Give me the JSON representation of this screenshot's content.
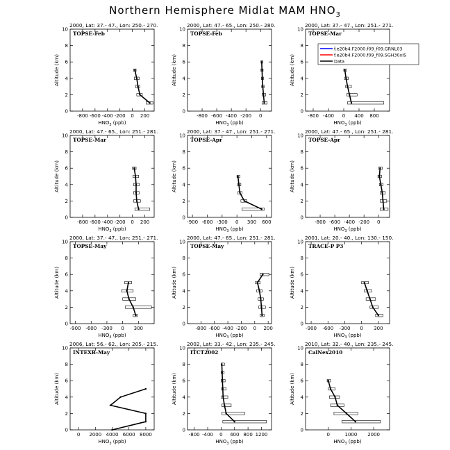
{
  "title_main": "Northern Hemisphere Midlat MAM HNO",
  "title_sub": "3",
  "legend": {
    "entries": [
      {
        "label": "f.e20b4.F2000.f09_f09.GRNL03",
        "color": "#0000ff"
      },
      {
        "label": "f.e20b4.F2000.f09_f09.SGH30xIS",
        "color": "#ff0000"
      },
      {
        "label": "Data",
        "color": "#000000"
      }
    ]
  },
  "chart_data": [
    {
      "type": "line",
      "header": "2000, Lat: 37.- 47., Lon: 250.- 270.",
      "campaign": "TOPSE-Feb",
      "xlabel": "HNO3 (ppb)",
      "ylabel": "Altitude (km)",
      "xlim": [
        -1000,
        350
      ],
      "ylim": [
        0,
        10
      ],
      "xticks": [
        -800,
        -600,
        -400,
        -200,
        0,
        200
      ],
      "yticks": [
        0,
        2,
        4,
        6,
        8,
        10
      ],
      "altitude": [
        1,
        2,
        3,
        4,
        5
      ],
      "mean": [
        280,
        120,
        90,
        70,
        40
      ],
      "box_lo": [
        220,
        70,
        50,
        30,
        20
      ],
      "box_hi": [
        330,
        160,
        120,
        110,
        60
      ]
    },
    {
      "type": "line",
      "header": "2000, Lat: 47.- 65., Lon: 250.- 280.",
      "campaign": "TOPSE-Feb",
      "xlabel": "HNO3 (ppb)",
      "ylabel": "Altitude (km)",
      "xlim": [
        -1000,
        150
      ],
      "ylim": [
        0,
        10
      ],
      "xticks": [
        -800,
        -600,
        -400,
        -200,
        0
      ],
      "yticks": [
        0,
        2,
        4,
        6,
        8,
        10
      ],
      "altitude": [
        1,
        2,
        3,
        4,
        5,
        6
      ],
      "mean": [
        50,
        40,
        30,
        25,
        20,
        15
      ],
      "box_lo": [
        20,
        20,
        15,
        10,
        5,
        5
      ],
      "box_hi": [
        90,
        70,
        50,
        40,
        35,
        30
      ]
    },
    {
      "type": "line",
      "header": "2000, Lat: 37.- 47., Lon: 251.- 271.",
      "campaign": "TOPSE-Mar",
      "xlabel": "HNO3 (ppb)",
      "ylabel": "Altitude (km)",
      "xlim": [
        -1000,
        1200
      ],
      "ylim": [
        0,
        10
      ],
      "xticks": [
        -800,
        -400,
        0,
        400,
        800
      ],
      "yticks": [
        0,
        2,
        4,
        6,
        8,
        10
      ],
      "altitude": [
        1,
        2,
        3,
        4,
        5
      ],
      "mean": [
        200,
        150,
        100,
        60,
        30
      ],
      "box_lo": [
        100,
        80,
        50,
        20,
        0
      ],
      "box_hi": [
        1050,
        350,
        200,
        120,
        70
      ]
    },
    {
      "type": "line",
      "header": "2000, Lat: 47.- 65., Lon: 251.- 281.",
      "campaign": "TOPSE-Mar",
      "xlabel": "HNO3 (ppb)",
      "ylabel": "Altitude (km)",
      "xlim": [
        -1000,
        350
      ],
      "ylim": [
        0,
        10
      ],
      "xticks": [
        -800,
        -600,
        -400,
        -200,
        0,
        200
      ],
      "yticks": [
        0,
        2,
        4,
        6,
        8,
        10
      ],
      "altitude": [
        1,
        2,
        3,
        4,
        5,
        6
      ],
      "mean": [
        100,
        70,
        60,
        60,
        50,
        30
      ],
      "box_lo": [
        40,
        20,
        20,
        20,
        10,
        0
      ],
      "box_hi": [
        280,
        130,
        110,
        110,
        100,
        60
      ]
    },
    {
      "type": "line",
      "header": "2000, Lat: 37.- 47., Lon: 251.- 271.",
      "campaign": "TOPSE-Apr",
      "xlabel": "HNO3 (ppb)",
      "ylabel": "Altitude (km)",
      "xlim": [
        -1000,
        700
      ],
      "ylim": [
        0,
        10
      ],
      "xticks": [
        -900,
        -600,
        -300,
        0,
        300,
        600
      ],
      "yticks": [
        0,
        2,
        4,
        6,
        8,
        10
      ],
      "altitude": [
        1,
        2,
        3,
        4,
        5
      ],
      "mean": [
        500,
        150,
        60,
        40,
        20
      ],
      "box_lo": [
        100,
        80,
        20,
        10,
        0
      ],
      "box_hi": [
        550,
        200,
        100,
        80,
        60
      ]
    },
    {
      "type": "line",
      "header": "2000, Lat: 47.- 65., Lon: 251.- 281.",
      "campaign": "TOPSE-Apr",
      "xlabel": "HNO3 (ppb)",
      "ylabel": "Altitude (km)",
      "xlim": [
        -1000,
        150
      ],
      "ylim": [
        0,
        10
      ],
      "xticks": [
        -800,
        -600,
        -400,
        -200,
        0
      ],
      "yticks": [
        0,
        2,
        4,
        6,
        8,
        10
      ],
      "altitude": [
        1,
        2,
        3,
        4,
        5,
        6
      ],
      "mean": [
        70,
        60,
        50,
        30,
        10,
        20
      ],
      "box_lo": [
        20,
        20,
        20,
        10,
        -10,
        0
      ],
      "box_hi": [
        130,
        110,
        90,
        60,
        40,
        50
      ]
    },
    {
      "type": "line",
      "header": "2000, Lat: 37.- 47., Lon: 251.- 271.",
      "campaign": "TOPSE-May",
      "xlabel": "HNO3 (ppb)",
      "ylabel": "Altitude (km)",
      "xlim": [
        -1000,
        600
      ],
      "ylim": [
        0,
        10
      ],
      "xticks": [
        -900,
        -600,
        -300,
        0,
        300
      ],
      "yticks": [
        0,
        2,
        4,
        6,
        8,
        10
      ],
      "altitude": [
        1,
        2,
        3,
        4,
        5
      ],
      "mean": [
        250,
        200,
        120,
        80,
        110
      ],
      "box_lo": [
        200,
        50,
        0,
        -20,
        40
      ],
      "box_hi": [
        280,
        550,
        250,
        200,
        170
      ]
    },
    {
      "type": "line",
      "header": "2000, Lat: 47.- 65., Lon: 251.- 281.",
      "campaign": "TOPSE-May",
      "xlabel": "HNO3 (ppb)",
      "ylabel": "Altitude (km)",
      "xlim": [
        -1000,
        250
      ],
      "ylim": [
        0,
        10
      ],
      "xticks": [
        -800,
        -600,
        -400,
        -200,
        0,
        200
      ],
      "yticks": [
        0,
        2,
        4,
        6,
        8,
        10
      ],
      "altitude": [
        1,
        2,
        3,
        4,
        5,
        6
      ],
      "mean": [
        110,
        100,
        90,
        70,
        40,
        120
      ],
      "box_lo": [
        80,
        60,
        50,
        30,
        10,
        80
      ],
      "box_hi": [
        140,
        160,
        130,
        110,
        80,
        210
      ]
    },
    {
      "type": "line",
      "header": "2001, Lat: 20.- 40., Lon: 130.- 150.",
      "campaign": "TRACE-P P3",
      "xlabel": "HNO3 (ppb)",
      "ylabel": "Altitude (km)",
      "xlim": [
        -1000,
        500
      ],
      "ylim": [
        0,
        10
      ],
      "xticks": [
        -900,
        -600,
        -300,
        0,
        300
      ],
      "yticks": [
        0,
        2,
        4,
        6,
        8,
        10
      ],
      "altitude": [
        1,
        2,
        3,
        4,
        5
      ],
      "mean": [
        300,
        200,
        150,
        100,
        50
      ],
      "box_lo": [
        250,
        150,
        80,
        50,
        0
      ],
      "box_hi": [
        380,
        300,
        250,
        180,
        120
      ]
    },
    {
      "type": "line",
      "header": "2006, Lat: 56.- 62., Lon: 205.- 215.",
      "campaign": "INTEXB-May",
      "xlabel": "HNO3 (ppb)",
      "ylabel": "Altitude (km)",
      "xlim": [
        -1000,
        9000
      ],
      "ylim": [
        0,
        10
      ],
      "xticks": [
        0,
        2000,
        4000,
        6000,
        8000
      ],
      "yticks": [
        0,
        2,
        4,
        6,
        8,
        10
      ],
      "altitude": [
        0,
        1,
        2,
        3,
        4,
        5
      ],
      "mean": [
        4000,
        8000,
        8000,
        3800,
        5000,
        8000
      ],
      "box_lo": [],
      "box_hi": []
    },
    {
      "type": "line",
      "header": "2002, Lat: 33.- 42., Lon: 235.- 245.",
      "campaign": "ITCT2002",
      "xlabel": "HNO3 (ppb)",
      "ylabel": "Altitude (km)",
      "xlim": [
        -1000,
        1500
      ],
      "ylim": [
        0,
        10
      ],
      "xticks": [
        -800,
        -400,
        0,
        400,
        800,
        1200
      ],
      "yticks": [
        0,
        2,
        4,
        6,
        8,
        10
      ],
      "altitude": [
        1,
        2,
        3,
        4,
        5,
        6,
        7,
        8
      ],
      "mean": [
        400,
        150,
        100,
        60,
        50,
        40,
        30,
        20
      ],
      "box_lo": [
        50,
        20,
        20,
        10,
        10,
        0,
        0,
        0
      ],
      "box_hi": [
        1350,
        700,
        300,
        200,
        150,
        120,
        90,
        100
      ]
    },
    {
      "type": "line",
      "header": "2010, Lat: 32.- 40., Lon: 235.- 245.",
      "campaign": "CalNex2010",
      "xlabel": "HNO3 (ppb)",
      "ylabel": "Altitude (km)",
      "xlim": [
        -1000,
        2700
      ],
      "ylim": [
        0,
        10
      ],
      "xticks": [
        0,
        1000,
        2000
      ],
      "yticks": [
        0,
        2,
        4,
        6,
        8,
        10
      ],
      "altitude": [
        1,
        2,
        3,
        4,
        5,
        6
      ],
      "mean": [
        1200,
        800,
        400,
        300,
        100,
        0
      ],
      "box_lo": [
        600,
        250,
        100,
        50,
        0,
        -50
      ],
      "box_hi": [
        2300,
        1300,
        700,
        500,
        300,
        100
      ]
    }
  ]
}
